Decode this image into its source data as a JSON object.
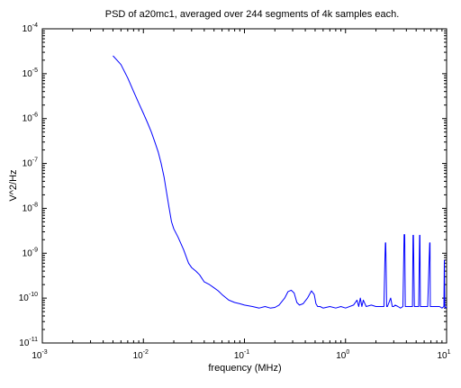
{
  "chart_data": {
    "type": "line",
    "title": "PSD of a20mc1, averaged over 244 segments of 4k samples each.",
    "xlabel": "frequency (MHz)",
    "ylabel": "V^2/Hz",
    "xscale": "log",
    "yscale": "log",
    "xlim": [
      0.001,
      10
    ],
    "ylim": [
      1e-11,
      0.0001
    ],
    "grid": false,
    "x_ticks": [
      {
        "base": "10",
        "exp": "-3"
      },
      {
        "base": "10",
        "exp": "-2"
      },
      {
        "base": "10",
        "exp": "-1"
      },
      {
        "base": "10",
        "exp": "0"
      },
      {
        "base": "10",
        "exp": "1"
      }
    ],
    "y_ticks": [
      {
        "base": "10",
        "exp": "-11"
      },
      {
        "base": "10",
        "exp": "-10"
      },
      {
        "base": "10",
        "exp": "-9"
      },
      {
        "base": "10",
        "exp": "-8"
      },
      {
        "base": "10",
        "exp": "-7"
      },
      {
        "base": "10",
        "exp": "-6"
      },
      {
        "base": "10",
        "exp": "-5"
      },
      {
        "base": "10",
        "exp": "-4"
      }
    ],
    "series": [
      {
        "color": "#0000ff",
        "x": [
          0.005,
          0.006,
          0.007,
          0.008,
          0.009,
          0.01,
          0.011,
          0.012,
          0.013,
          0.014,
          0.015,
          0.016,
          0.017,
          0.018,
          0.019,
          0.02,
          0.022,
          0.025,
          0.028,
          0.03,
          0.033,
          0.036,
          0.04,
          0.045,
          0.05,
          0.055,
          0.06,
          0.07,
          0.08,
          0.09,
          0.1,
          0.12,
          0.14,
          0.16,
          0.18,
          0.2,
          0.22,
          0.25,
          0.27,
          0.29,
          0.31,
          0.33,
          0.35,
          0.38,
          0.42,
          0.46,
          0.49,
          0.51,
          0.53,
          0.56,
          0.6,
          0.7,
          0.8,
          0.9,
          1.0,
          1.2,
          1.3,
          1.35,
          1.4,
          1.45,
          1.5,
          1.6,
          1.8,
          2.0,
          2.2,
          2.4,
          2.45,
          2.48,
          2.5,
          2.52,
          2.55,
          2.6,
          2.8,
          2.9,
          3.0,
          3.1,
          3.3,
          3.5,
          3.7,
          3.8,
          3.85,
          3.9,
          4.0,
          4.3,
          4.6,
          4.65,
          4.7,
          4.8,
          5.0,
          5.3,
          5.4,
          5.45,
          5.5,
          5.6,
          5.8,
          6.0,
          6.5,
          6.8,
          6.85,
          6.9,
          7.0,
          7.5,
          8.0,
          8.5,
          9.0,
          9.4,
          9.5,
          9.6,
          9.8,
          10.0
        ],
        "y": [
          2.5e-05,
          1.6e-05,
          8e-06,
          4e-06,
          2.2e-06,
          1.3e-06,
          8e-07,
          5e-07,
          3e-07,
          1.8e-07,
          1e-07,
          5e-08,
          2.2e-08,
          1e-08,
          5e-09,
          3.5e-09,
          2.3e-09,
          1.2e-09,
          6e-10,
          4.8e-10,
          4e-10,
          3.3e-10,
          2.3e-10,
          2e-10,
          1.7e-10,
          1.45e-10,
          1.2e-10,
          9e-11,
          8e-11,
          7.5e-11,
          7e-11,
          6.5e-11,
          6e-11,
          6.5e-11,
          6e-11,
          6.2e-11,
          7e-11,
          1e-10,
          1.4e-10,
          1.5e-10,
          1.3e-10,
          8e-11,
          7e-11,
          7.5e-11,
          1e-10,
          1.45e-10,
          1.2e-10,
          7.5e-11,
          6.5e-11,
          6.5e-11,
          6e-11,
          6.5e-11,
          6e-11,
          6.5e-11,
          6e-11,
          7e-11,
          9e-11,
          6.5e-11,
          1e-10,
          6.5e-11,
          9e-11,
          6.5e-11,
          7e-11,
          6.5e-11,
          6.5e-11,
          6.5e-11,
          6e-10,
          1.7e-09,
          1.7e-09,
          6e-10,
          6.5e-11,
          6.5e-11,
          1e-10,
          6.5e-11,
          6.5e-11,
          7e-11,
          6.5e-11,
          6e-11,
          6.5e-11,
          2.6e-09,
          2.6e-09,
          6.5e-11,
          6.5e-11,
          6.5e-11,
          6.5e-11,
          2.5e-09,
          2.5e-09,
          6.5e-11,
          6.5e-11,
          6.5e-11,
          2.5e-09,
          2.5e-09,
          6.5e-11,
          6.5e-11,
          6.5e-11,
          6.5e-11,
          6.5e-11,
          1.7e-09,
          1.7e-09,
          6.5e-11,
          6.5e-11,
          6.5e-11,
          6.5e-11,
          6.5e-11,
          6e-11,
          6.5e-11,
          7e-10,
          6.5e-11,
          6e-11,
          6.5e-11
        ]
      }
    ]
  }
}
